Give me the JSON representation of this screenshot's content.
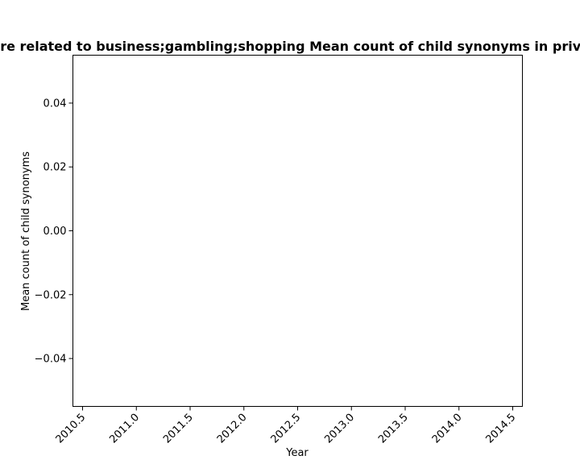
{
  "chart_data": {
    "type": "line",
    "title": "...re related to business;gambling;shopping Mean count of child synonyms in priv...",
    "xlabel": "Year",
    "ylabel": "Mean count of child synonyms",
    "xlim": [
      2010.41,
      2014.59
    ],
    "ylim": [
      -0.055,
      0.055
    ],
    "x_ticks": [
      2010.5,
      2011.0,
      2011.5,
      2012.0,
      2012.5,
      2013.0,
      2013.5,
      2014.0,
      2014.5
    ],
    "x_tick_labels": [
      "2010.5",
      "2011.0",
      "2011.5",
      "2012.0",
      "2012.5",
      "2013.0",
      "2013.5",
      "2014.0",
      "2014.5"
    ],
    "y_ticks": [
      -0.04,
      -0.02,
      0.0,
      0.02,
      0.04
    ],
    "y_tick_labels": [
      "−0.04",
      "−0.02",
      "0.00",
      "0.02",
      "0.04"
    ],
    "grid": false,
    "series": []
  }
}
